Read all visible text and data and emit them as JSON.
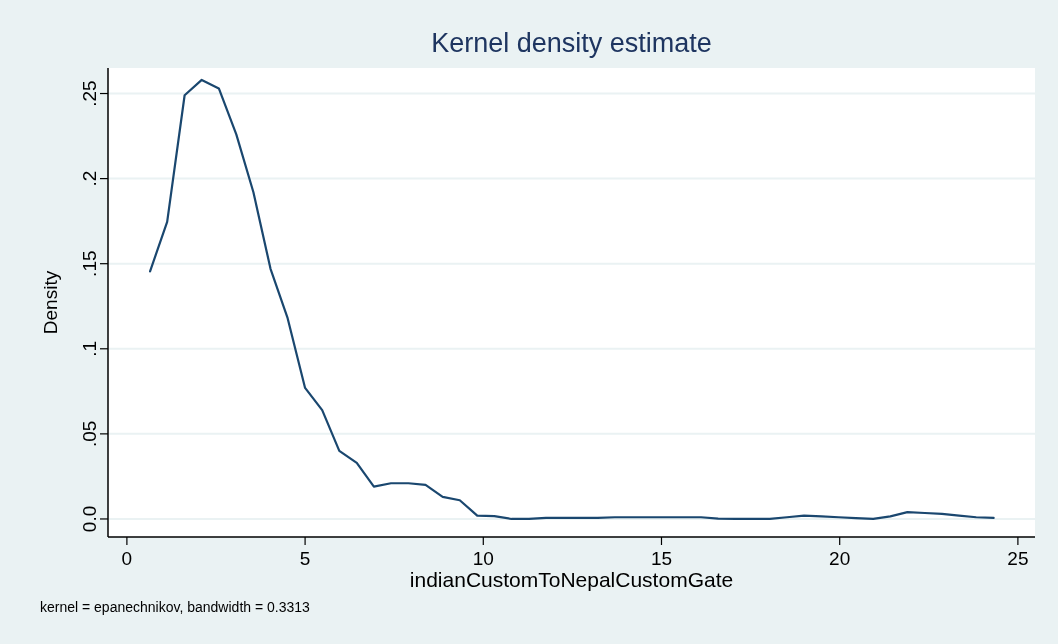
{
  "chart_data": {
    "type": "line",
    "title": "Kernel density estimate",
    "xlabel": "indianCustomToNepalCustomGate",
    "ylabel": "Density",
    "annotations": [
      "kernel = epanechnikov, bandwidth = 0.3313"
    ],
    "x": [
      0.65,
      1.13,
      1.62,
      2.1,
      2.58,
      3.07,
      3.55,
      4.03,
      4.51,
      5.0,
      5.48,
      5.96,
      6.45,
      6.93,
      7.41,
      7.9,
      8.38,
      8.86,
      9.34,
      9.83,
      10.31,
      10.79,
      11.28,
      11.76,
      12.24,
      12.73,
      13.21,
      13.69,
      14.17,
      14.66,
      15.14,
      15.62,
      16.11,
      16.59,
      17.07,
      17.56,
      18.04,
      18.52,
      19.0,
      19.49,
      19.97,
      20.45,
      20.94,
      21.42,
      21.9,
      22.39,
      22.87,
      23.35,
      23.83,
      24.32
    ],
    "series": [
      {
        "color": "#1a476f",
        "values": [
          0.1455,
          0.1746,
          0.249,
          0.258,
          0.253,
          0.226,
          0.192,
          0.147,
          0.118,
          0.077,
          0.064,
          0.04,
          0.033,
          0.019,
          0.021,
          0.021,
          0.02,
          0.013,
          0.011,
          0.002,
          0.0017,
          0,
          0,
          0.0006,
          0.0006,
          0.0006,
          0.0006,
          0.001,
          0.001,
          0.001,
          0.001,
          0.001,
          0.001,
          0.0002,
          0,
          0,
          0,
          0.001,
          0.002,
          0.0015,
          0.001,
          0.0005,
          0,
          0.0015,
          0.004,
          0.0035,
          0.003,
          0.002,
          0.001,
          0.0006
        ]
      }
    ],
    "xlim": [
      -0.53,
      25.48
    ],
    "ylim": [
      -0.0106,
      0.265
    ],
    "xticks": [
      0,
      5,
      10,
      15,
      20,
      25
    ],
    "yticks": [
      {
        "value": 0,
        "label": "0.0"
      },
      {
        "value": 0.05,
        "label": ".05"
      },
      {
        "value": 0.1,
        "label": ".1"
      },
      {
        "value": 0.15,
        "label": ".15"
      },
      {
        "value": 0.2,
        "label": ".2"
      },
      {
        "value": 0.25,
        "label": ".25"
      }
    ],
    "grid": "y",
    "marker": "none",
    "line_style": "solid"
  }
}
